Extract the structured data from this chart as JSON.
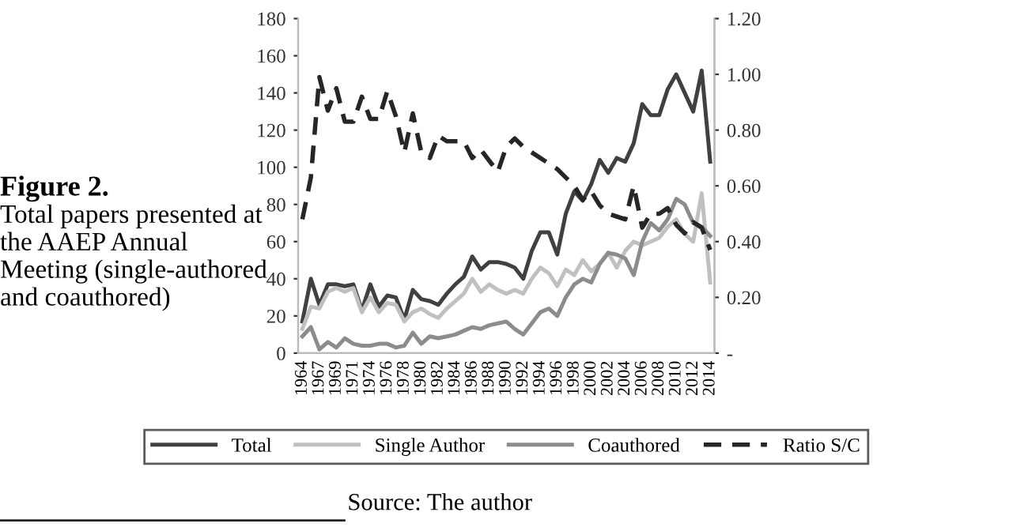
{
  "chart_data": {
    "type": "line",
    "title": "Figure 2.",
    "subtitle": "Total papers presented at the AAEP Annual Meeting (single-authored and coauthored)",
    "annotations": [
      "Source: The author"
    ],
    "categories": [
      "1964",
      null,
      "1967",
      null,
      "1969",
      null,
      "1971",
      null,
      "1974",
      null,
      "1976",
      null,
      "1978",
      null,
      "1980",
      null,
      "1982",
      null,
      "1984",
      null,
      "1986",
      null,
      "1988",
      null,
      "1990",
      null,
      "1992",
      null,
      "1994",
      null,
      "1996",
      null,
      "1998",
      null,
      "2000",
      null,
      "2002",
      null,
      "2004",
      null,
      "2006",
      null,
      "2008",
      null,
      "2010",
      null,
      "2012",
      null,
      "2014"
    ],
    "series": [
      {
        "name": "Total",
        "color": "#404040",
        "line_style": "solid",
        "values": [
          17,
          40,
          26,
          37,
          37,
          36,
          37,
          23,
          37,
          25,
          31,
          30,
          18,
          34,
          29,
          28,
          26,
          32,
          37,
          41,
          52,
          45,
          49,
          49,
          48,
          46,
          40,
          55,
          65,
          65,
          53,
          75,
          87,
          82,
          91,
          104,
          97,
          105,
          103,
          113,
          134,
          128,
          128,
          142,
          150,
          140,
          130,
          152,
          103
        ]
      },
      {
        "name": "Single Author",
        "color": "#c0c0c0",
        "line_style": "solid",
        "values": [
          13,
          25,
          24,
          33,
          35,
          33,
          35,
          22,
          30,
          22,
          27,
          26,
          17,
          22,
          24,
          21,
          19,
          24,
          28,
          32,
          40,
          33,
          37,
          34,
          32,
          34,
          32,
          40,
          46,
          43,
          36,
          45,
          42,
          50,
          44,
          48,
          54,
          46,
          55,
          60,
          58,
          60,
          62,
          68,
          72,
          64,
          60,
          86,
          38
        ]
      },
      {
        "name": "Coauthored",
        "color": "#8c8c8c",
        "line_style": "solid",
        "values": [
          9,
          14,
          2,
          6,
          3,
          8,
          5,
          4,
          4,
          5,
          5,
          3,
          4,
          11,
          5,
          9,
          8,
          9,
          10,
          12,
          14,
          13,
          15,
          16,
          17,
          13,
          10,
          16,
          22,
          24,
          20,
          30,
          37,
          40,
          38,
          48,
          54,
          53,
          51,
          42,
          60,
          70,
          66,
          72,
          83,
          80,
          70,
          68,
          63
        ]
      },
      {
        "name": "Ratio S/C",
        "color": "#262626",
        "line_style": "dashed",
        "axis": "y2",
        "values": [
          0.48,
          0.63,
          0.99,
          0.87,
          0.95,
          0.83,
          0.83,
          0.92,
          0.84,
          0.84,
          0.94,
          0.85,
          0.72,
          0.86,
          0.72,
          0.7,
          0.78,
          0.76,
          0.76,
          0.76,
          0.7,
          0.73,
          0.69,
          0.65,
          0.74,
          0.77,
          0.74,
          0.72,
          0.7,
          0.68,
          0.66,
          0.63,
          0.6,
          0.55,
          0.58,
          0.53,
          0.5,
          0.49,
          0.48,
          0.6,
          0.45,
          0.5,
          0.5,
          0.52,
          0.46,
          0.43,
          0.47,
          0.45,
          0.37
        ]
      }
    ],
    "ylim": [
      0,
      180
    ],
    "yticks": [
      0,
      20,
      40,
      60,
      80,
      100,
      120,
      140,
      160,
      180
    ],
    "y2lim": [
      0,
      1.2
    ],
    "y2ticks": [
      {
        "value": 0,
        "label": "-"
      },
      {
        "value": 0.2,
        "label": "0.20"
      },
      {
        "value": 0.4,
        "label": "0.40"
      },
      {
        "value": 0.6,
        "label": "0.60"
      },
      {
        "value": 0.8,
        "label": "0.80"
      },
      {
        "value": 1.0,
        "label": "1.00"
      },
      {
        "value": 1.2,
        "label": "1.20"
      }
    ],
    "grid": false,
    "legend": "bottom",
    "marker": "none"
  }
}
